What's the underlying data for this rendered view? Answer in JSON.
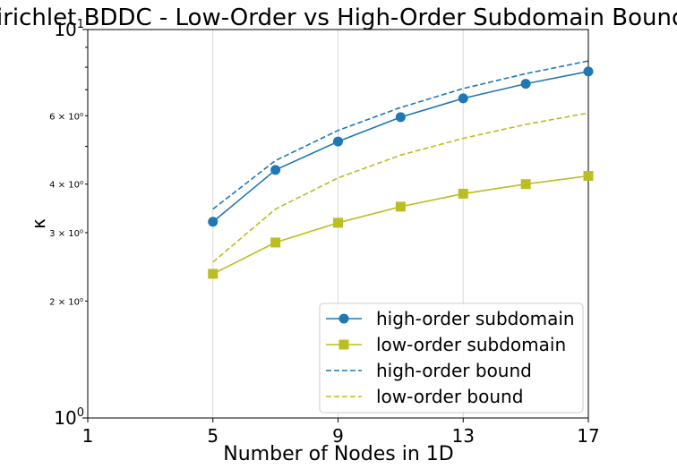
{
  "chart_data": {
    "type": "line",
    "title": "Dirichlet BDDC - Low-Order vs High-Order Subdomain Bounds",
    "xlabel": "Number of Nodes in 1D",
    "ylabel": "κ",
    "xlim": [
      1,
      17
    ],
    "ylim": [
      1,
      10
    ],
    "yscale": "log",
    "grid": "x",
    "legend_position": "lower-right",
    "x_ticks": [
      {
        "value": 1,
        "label": "1"
      },
      {
        "value": 5,
        "label": "5"
      },
      {
        "value": 9,
        "label": "9"
      },
      {
        "value": 13,
        "label": "13"
      },
      {
        "value": 17,
        "label": "17"
      }
    ],
    "y_major_ticks": [
      {
        "value": 1,
        "base": "10",
        "exp": "0"
      },
      {
        "value": 10,
        "base": "10",
        "exp": "1"
      }
    ],
    "y_minor_ticks": [
      {
        "value": 2,
        "label": "2 × 10⁰"
      },
      {
        "value": 3,
        "label": "3 × 10⁰"
      },
      {
        "value": 4,
        "label": "4 × 10⁰"
      },
      {
        "value": 6,
        "label": "6 × 10⁰"
      }
    ],
    "y_minor_unlabeled": [
      5,
      7,
      8,
      9
    ],
    "series": [
      {
        "name": "high-order subdomain",
        "color": "#1f77b4",
        "style": "solid",
        "marker": "circle",
        "x": [
          5,
          7,
          9,
          11,
          13,
          15,
          17
        ],
        "y": [
          3.2,
          4.35,
          5.15,
          5.95,
          6.65,
          7.25,
          7.8
        ]
      },
      {
        "name": "low-order subdomain",
        "color": "#bcbd22",
        "style": "solid",
        "marker": "square",
        "x": [
          5,
          7,
          9,
          11,
          13,
          15,
          17
        ],
        "y": [
          2.35,
          2.83,
          3.18,
          3.5,
          3.78,
          4.0,
          4.2
        ]
      },
      {
        "name": "high-order bound",
        "color": "#1f77b4",
        "style": "dashed",
        "marker": "none",
        "x": [
          5,
          7,
          9,
          11,
          13,
          15,
          17
        ],
        "y": [
          3.45,
          4.6,
          5.5,
          6.3,
          7.05,
          7.7,
          8.3
        ]
      },
      {
        "name": "low-order bound",
        "color": "#bcbd22",
        "style": "dashed",
        "marker": "none",
        "x": [
          5,
          7,
          9,
          11,
          13,
          15,
          17
        ],
        "y": [
          2.52,
          3.45,
          4.15,
          4.75,
          5.25,
          5.7,
          6.1
        ]
      }
    ]
  }
}
